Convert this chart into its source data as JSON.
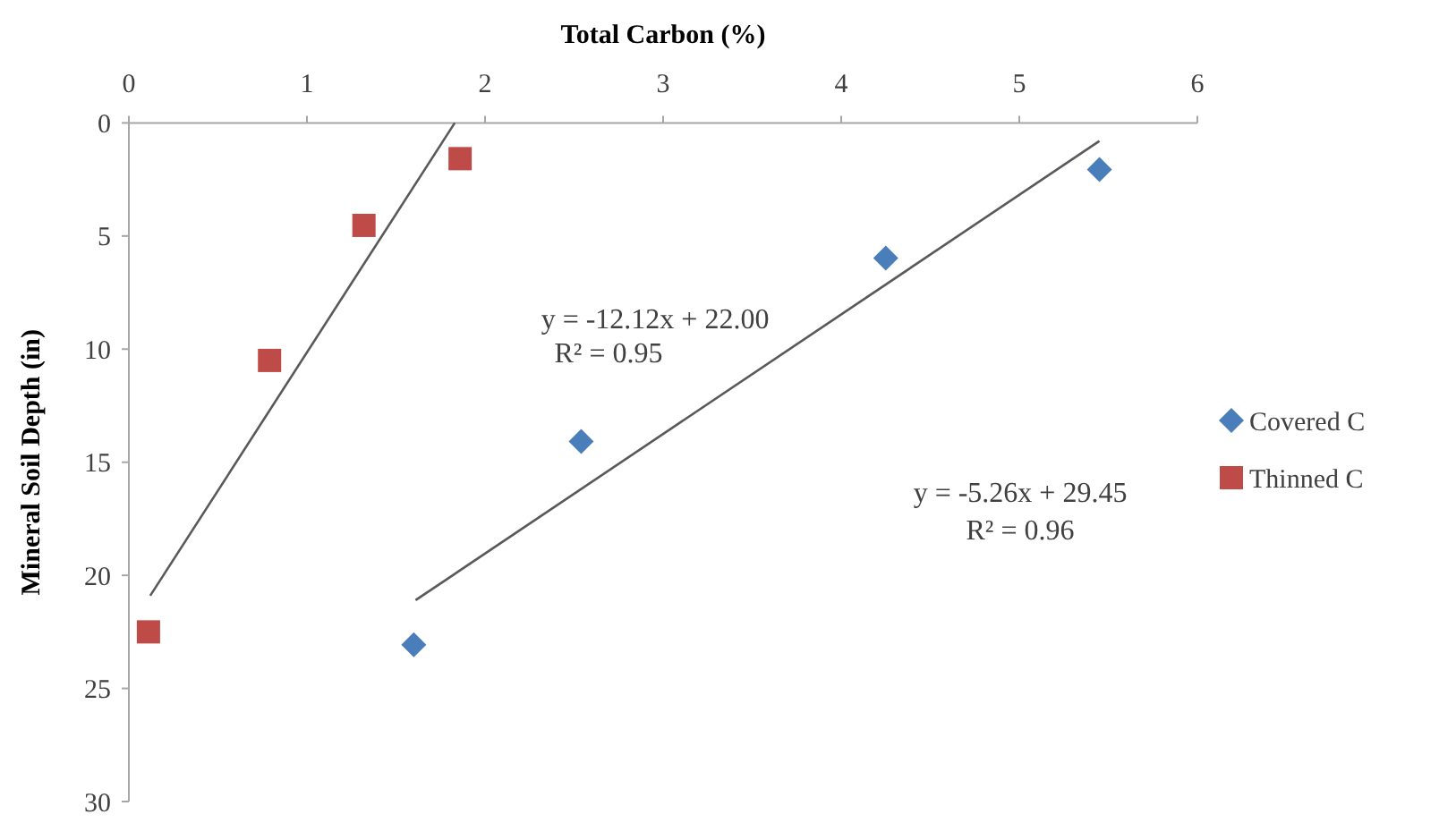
{
  "chart_data": {
    "type": "scatter",
    "xlabel": "Total Carbon (%)",
    "ylabel": "Mineral Soil Depth (in)",
    "xlim": [
      0,
      6
    ],
    "xticks": [
      0,
      1,
      2,
      3,
      4,
      5,
      6
    ],
    "ylim": [
      30,
      0
    ],
    "yticks": [
      0,
      5,
      10,
      15,
      20,
      25,
      30
    ],
    "grid": false,
    "legend": "right",
    "series": [
      {
        "name": "Covered C",
        "marker": "diamond",
        "color": "#4a7ebb",
        "x": [
          5.45,
          4.25,
          2.54,
          1.6
        ],
        "values": [
          2.06,
          5.98,
          14.08,
          23.07
        ]
      },
      {
        "name": "Thinned C",
        "marker": "square",
        "color": "#be4b48",
        "x": [
          1.86,
          1.32,
          0.79,
          0.11
        ],
        "values": [
          1.58,
          4.53,
          10.5,
          22.5
        ]
      },
      {
        "type": "line",
        "color": "#595959",
        "marker": "none",
        "x": [
          1.83,
          0.12
        ],
        "values": [
          0,
          20.9
        ]
      },
      {
        "type": "line",
        "color": "#595959",
        "marker": "none",
        "x": [
          1.61,
          5.45
        ],
        "values": [
          21.1,
          0.8
        ]
      }
    ],
    "annotations": [
      "y = -12.12x + 22.00",
      "R² = 0.95",
      "y = -5.26x + 29.45",
      "R² = 0.96"
    ]
  }
}
